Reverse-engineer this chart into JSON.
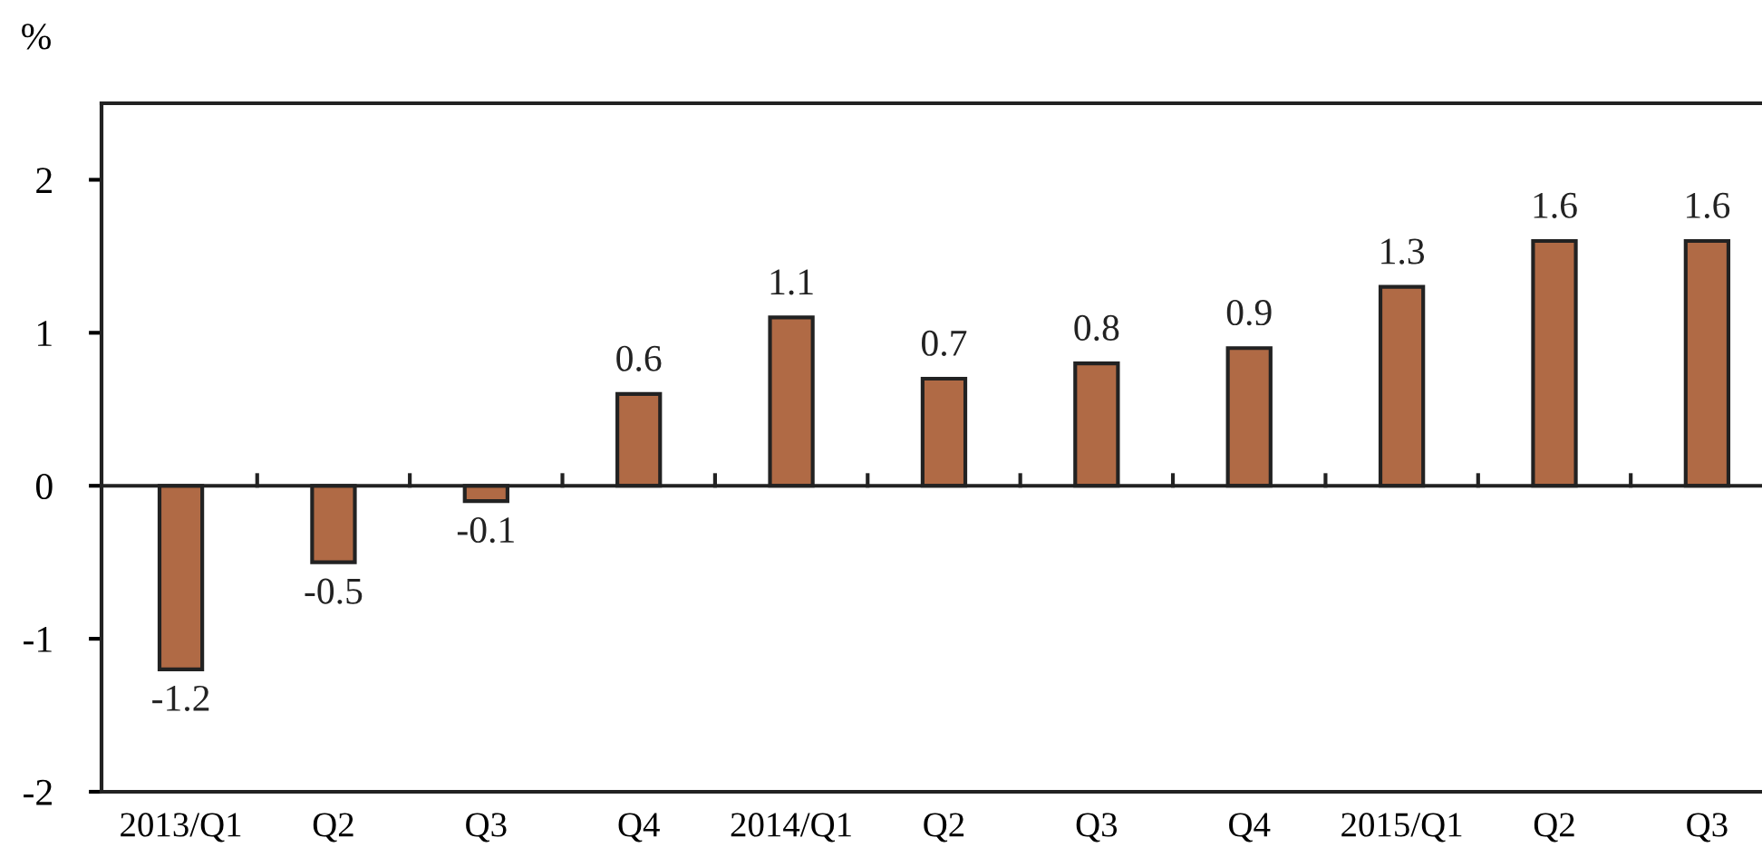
{
  "chart_data": {
    "type": "bar",
    "ylabel": "%",
    "categories": [
      "2013/Q1",
      "Q2",
      "Q3",
      "Q4",
      "2014/Q1",
      "Q2",
      "Q3",
      "Q4",
      "2015/Q1",
      "Q2",
      "Q3"
    ],
    "values": [
      -1.2,
      -0.5,
      -0.1,
      0.6,
      1.1,
      0.7,
      0.8,
      0.9,
      1.3,
      1.6,
      1.6
    ],
    "color": "#b06a45",
    "ylim": [
      -2,
      2.5
    ],
    "yticks": [
      -2,
      -1,
      0,
      1,
      2
    ],
    "ref_lines": [
      {
        "axis": "y",
        "value": 0,
        "color": "#222222"
      }
    ],
    "data_labels": true,
    "grid": false,
    "legend": false
  }
}
